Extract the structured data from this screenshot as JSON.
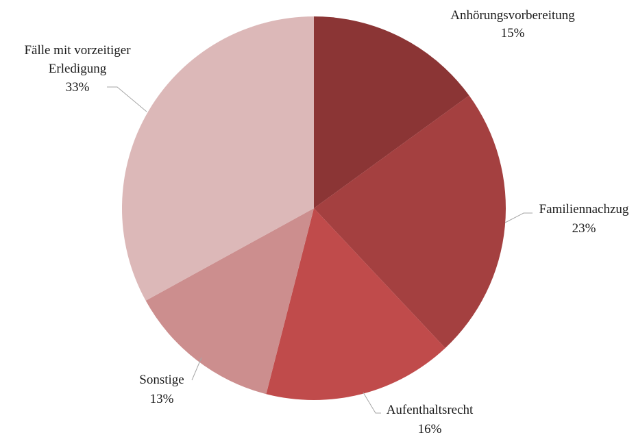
{
  "chart_data": {
    "type": "pie",
    "title": "",
    "start_angle_deg": 0,
    "direction": "clockwise",
    "slices": [
      {
        "name": "Anhörungsvorbereitung",
        "value": 15,
        "label": "15%",
        "color": "#8b3535"
      },
      {
        "name": "Familiennachzug",
        "value": 23,
        "label": "23%",
        "color": "#a44040"
      },
      {
        "name": "Aufenthaltsrecht",
        "value": 16,
        "label": "16%",
        "color": "#c04b4b"
      },
      {
        "name": "Sonstige",
        "value": 13,
        "label": "13%",
        "color": "#cc8e8e"
      },
      {
        "name": "Fälle mit vorzeitiger Erledigung",
        "value": 33,
        "label": "33%",
        "color": "#dcb8b8"
      }
    ],
    "legend": "none"
  }
}
